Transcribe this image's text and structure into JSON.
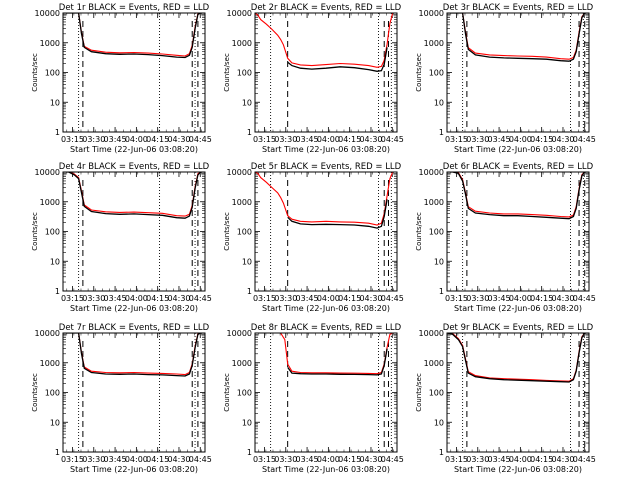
{
  "figure": {
    "ylabel": "Counts/sec",
    "xlabel": "Start Time (22-Jun-06 03:08:20)",
    "x_tick_labels": [
      "03:15",
      "03:30",
      "03:45",
      "04:00",
      "04:15",
      "04:30",
      "04:45"
    ],
    "y_tick_labels": [
      "1",
      "10",
      "100",
      "1000",
      "10000"
    ],
    "colors": {
      "events": "#000000",
      "lld": "#ff0000",
      "axes": "#000000",
      "background": "#ffffff"
    }
  },
  "chart_data": [
    {
      "type": "line",
      "title": "Det 1r BLACK = Events, RED = LLD",
      "xlabel": "Start Time (22-Jun-06 03:08:20)",
      "ylabel": "Counts/sec",
      "x_unit": "minutes after 03:08:20",
      "y_scale": "log",
      "xlim": [
        0,
        100
      ],
      "ylim": [
        1,
        10000
      ],
      "dotted_markers": [
        11,
        68,
        93
      ],
      "dashed_markers": [
        14,
        91,
        95
      ],
      "series": [
        {
          "color": "#000000",
          "x": [
            0,
            8,
            11,
            13,
            15,
            20,
            30,
            40,
            50,
            60,
            70,
            80,
            86,
            89,
            91,
            93,
            95,
            97,
            100
          ],
          "y": [
            12000,
            12000,
            10000,
            2000,
            700,
            500,
            430,
            410,
            420,
            400,
            370,
            330,
            320,
            380,
            700,
            3000,
            9000,
            12000,
            12000
          ]
        },
        {
          "color": "#ff0000",
          "x": [
            0,
            8,
            11,
            13,
            15,
            20,
            30,
            40,
            50,
            60,
            70,
            80,
            86,
            89,
            91,
            93,
            95,
            97,
            100
          ],
          "y": [
            12000,
            12000,
            10500,
            2200,
            760,
            560,
            480,
            460,
            470,
            450,
            420,
            380,
            360,
            430,
            800,
            3400,
            9500,
            12000,
            12000
          ]
        }
      ]
    },
    {
      "type": "line",
      "title": "Det 2r BLACK = Events, RED = LLD",
      "xlabel": "Start Time (22-Jun-06 03:08:20)",
      "ylabel": "Counts/sec",
      "x_unit": "minutes after 03:08:20",
      "y_scale": "log",
      "xlim": [
        0,
        100
      ],
      "ylim": [
        1,
        10000
      ],
      "dotted_markers": [
        11,
        87,
        96
      ],
      "dashed_markers": [
        23,
        91,
        94
      ],
      "series": [
        {
          "color": "#000000",
          "x": [
            23,
            26,
            32,
            40,
            50,
            60,
            70,
            80,
            86,
            89,
            91,
            93
          ],
          "y": [
            220,
            170,
            140,
            130,
            140,
            155,
            145,
            125,
            110,
            115,
            190,
            700
          ]
        },
        {
          "color": "#ff0000",
          "x": [
            0,
            2,
            4,
            8,
            12,
            16,
            18,
            20,
            23,
            26,
            32,
            40,
            50,
            60,
            70,
            80,
            86,
            89,
            91,
            93,
            95,
            97,
            100
          ],
          "y": [
            12000,
            8500,
            6000,
            4200,
            2800,
            1800,
            1300,
            850,
            300,
            210,
            180,
            170,
            185,
            200,
            190,
            170,
            150,
            160,
            260,
            900,
            4500,
            12000,
            12000
          ]
        }
      ]
    },
    {
      "type": "line",
      "title": "Det 3r BLACK = Events, RED = LLD",
      "xlabel": "Start Time (22-Jun-06 03:08:20)",
      "ylabel": "Counts/sec",
      "x_unit": "minutes after 03:08:20",
      "y_scale": "log",
      "xlim": [
        0,
        100
      ],
      "ylim": [
        1,
        10000
      ],
      "dotted_markers": [
        11,
        87,
        96
      ],
      "dashed_markers": [
        14,
        93,
        97
      ],
      "series": [
        {
          "color": "#000000",
          "x": [
            0,
            8,
            11,
            13,
            15,
            20,
            30,
            40,
            50,
            60,
            70,
            80,
            86,
            89,
            91,
            93,
            95,
            97,
            100
          ],
          "y": [
            12000,
            12000,
            10000,
            2000,
            600,
            390,
            330,
            310,
            300,
            290,
            280,
            250,
            240,
            280,
            500,
            2000,
            7000,
            12000,
            12000
          ]
        },
        {
          "color": "#ff0000",
          "x": [
            0,
            8,
            11,
            13,
            15,
            20,
            30,
            40,
            50,
            60,
            70,
            80,
            86,
            89,
            91,
            93,
            95,
            97,
            100
          ],
          "y": [
            12000,
            12000,
            10500,
            2300,
            680,
            450,
            390,
            370,
            360,
            350,
            330,
            290,
            280,
            320,
            560,
            2300,
            7500,
            12000,
            12000
          ]
        }
      ]
    },
    {
      "type": "line",
      "title": "Det 4r BLACK = Events, RED = LLD",
      "xlabel": "Start Time (22-Jun-06 03:08:20)",
      "ylabel": "Counts/sec",
      "x_unit": "minutes after 03:08:20",
      "y_scale": "log",
      "xlim": [
        0,
        100
      ],
      "ylim": [
        1,
        10000
      ],
      "dotted_markers": [
        11,
        68,
        93
      ],
      "dashed_markers": [
        14,
        91,
        95
      ],
      "series": [
        {
          "color": "#000000",
          "x": [
            0,
            4,
            8,
            11,
            13,
            15,
            20,
            30,
            40,
            50,
            60,
            70,
            80,
            86,
            89,
            91,
            93,
            95,
            97,
            100
          ],
          "y": [
            12000,
            10000,
            8000,
            6000,
            2000,
            700,
            470,
            400,
            380,
            390,
            370,
            350,
            290,
            280,
            330,
            650,
            2800,
            8000,
            12000,
            12000
          ]
        },
        {
          "color": "#ff0000",
          "x": [
            0,
            4,
            8,
            11,
            13,
            15,
            20,
            30,
            40,
            50,
            60,
            70,
            80,
            86,
            89,
            91,
            93,
            95,
            97,
            100
          ],
          "y": [
            12000,
            10500,
            8500,
            6500,
            2300,
            780,
            530,
            460,
            440,
            450,
            430,
            410,
            340,
            330,
            380,
            740,
            3200,
            8800,
            12000,
            12000
          ]
        }
      ]
    },
    {
      "type": "line",
      "title": "Det 5r BLACK = Events, RED = LLD",
      "xlabel": "Start Time (22-Jun-06 03:08:20)",
      "ylabel": "Counts/sec",
      "x_unit": "minutes after 03:08:20",
      "y_scale": "log",
      "xlim": [
        0,
        100
      ],
      "ylim": [
        1,
        10000
      ],
      "dotted_markers": [
        11,
        87,
        96
      ],
      "dashed_markers": [
        23,
        91,
        94
      ],
      "series": [
        {
          "color": "#000000",
          "x": [
            23,
            26,
            32,
            40,
            50,
            60,
            70,
            80,
            86,
            89,
            91,
            93
          ],
          "y": [
            300,
            220,
            180,
            170,
            175,
            170,
            165,
            150,
            130,
            150,
            320,
            1200
          ]
        },
        {
          "color": "#ff0000",
          "x": [
            0,
            2,
            4,
            8,
            12,
            16,
            18,
            20,
            23,
            26,
            32,
            40,
            50,
            60,
            70,
            80,
            86,
            89,
            91,
            93,
            95,
            97,
            100
          ],
          "y": [
            12000,
            9000,
            6500,
            4500,
            3000,
            2000,
            1400,
            900,
            340,
            260,
            220,
            210,
            220,
            210,
            205,
            190,
            165,
            190,
            400,
            1600,
            6000,
            12000,
            12000
          ]
        }
      ]
    },
    {
      "type": "line",
      "title": "Det 6r BLACK = Events, RED = LLD",
      "xlabel": "Start Time (22-Jun-06 03:08:20)",
      "ylabel": "Counts/sec",
      "x_unit": "minutes after 03:08:20",
      "y_scale": "log",
      "xlim": [
        0,
        100
      ],
      "ylim": [
        1,
        10000
      ],
      "dotted_markers": [
        11,
        87,
        96
      ],
      "dashed_markers": [
        14,
        93,
        97
      ],
      "series": [
        {
          "color": "#000000",
          "x": [
            0,
            4,
            8,
            11,
            13,
            15,
            20,
            30,
            40,
            50,
            60,
            70,
            80,
            86,
            89,
            91,
            93,
            95,
            97,
            100
          ],
          "y": [
            12000,
            12000,
            9000,
            5000,
            1800,
            600,
            420,
            370,
            340,
            340,
            320,
            300,
            280,
            270,
            320,
            600,
            2500,
            7500,
            12000,
            12000
          ]
        },
        {
          "color": "#ff0000",
          "x": [
            0,
            4,
            8,
            11,
            13,
            15,
            20,
            30,
            40,
            50,
            60,
            70,
            80,
            86,
            89,
            91,
            93,
            95,
            97,
            100
          ],
          "y": [
            12000,
            12000,
            9500,
            5500,
            2000,
            680,
            480,
            420,
            390,
            390,
            370,
            350,
            320,
            310,
            360,
            680,
            2800,
            8200,
            12000,
            12000
          ]
        }
      ]
    },
    {
      "type": "line",
      "title": "Det 7r BLACK = Events, RED = LLD",
      "xlabel": "Start Time (22-Jun-06 03:08:20)",
      "ylabel": "Counts/sec",
      "x_unit": "minutes after 03:08:20",
      "y_scale": "log",
      "xlim": [
        0,
        100
      ],
      "ylim": [
        1,
        10000
      ],
      "dotted_markers": [
        11,
        68,
        93
      ],
      "dashed_markers": [
        14,
        91,
        95
      ],
      "series": [
        {
          "color": "#000000",
          "x": [
            0,
            8,
            11,
            13,
            15,
            20,
            30,
            40,
            50,
            60,
            70,
            80,
            86,
            89,
            91,
            93,
            95,
            97,
            100
          ],
          "y": [
            12000,
            12000,
            10000,
            2000,
            650,
            470,
            420,
            410,
            420,
            400,
            390,
            370,
            360,
            420,
            800,
            3200,
            9000,
            12000,
            12000
          ]
        },
        {
          "color": "#ff0000",
          "x": [
            0,
            8,
            11,
            13,
            15,
            20,
            30,
            40,
            50,
            60,
            70,
            80,
            86,
            89,
            91,
            93,
            95,
            97,
            100
          ],
          "y": [
            12000,
            12000,
            10500,
            2200,
            720,
            520,
            470,
            460,
            470,
            450,
            440,
            420,
            400,
            470,
            900,
            3600,
            9500,
            12000,
            12000
          ]
        }
      ]
    },
    {
      "type": "line",
      "title": "Det 8r BLACK = Events, RED = LLD",
      "xlabel": "Start Time (22-Jun-06 03:08:20)",
      "ylabel": "Counts/sec",
      "x_unit": "minutes after 03:08:20",
      "y_scale": "log",
      "xlim": [
        0,
        100
      ],
      "ylim": [
        1,
        10000
      ],
      "dotted_markers": [
        11,
        87,
        96
      ],
      "dashed_markers": [
        23,
        91,
        94
      ],
      "series": [
        {
          "color": "#000000",
          "x": [
            23,
            26,
            32,
            40,
            50,
            60,
            70,
            80,
            86,
            89,
            91,
            93
          ],
          "y": [
            700,
            450,
            430,
            420,
            420,
            410,
            405,
            400,
            390,
            420,
            800,
            3000
          ]
        },
        {
          "color": "#ff0000",
          "x": [
            0,
            8,
            13,
            18,
            21,
            23,
            26,
            32,
            40,
            50,
            60,
            70,
            80,
            86,
            89,
            91,
            93,
            95,
            97,
            100
          ],
          "y": [
            12000,
            12000,
            12000,
            11000,
            6000,
            900,
            520,
            470,
            460,
            460,
            450,
            445,
            440,
            430,
            470,
            900,
            3300,
            9000,
            12000,
            12000
          ]
        }
      ]
    },
    {
      "type": "line",
      "title": "Det 9r BLACK = Events, RED = LLD",
      "xlabel": "Start Time (22-Jun-06 03:08:20)",
      "ylabel": "Counts/sec",
      "x_unit": "minutes after 03:08:20",
      "y_scale": "log",
      "xlim": [
        0,
        100
      ],
      "ylim": [
        1,
        10000
      ],
      "dotted_markers": [
        11,
        87,
        96
      ],
      "dashed_markers": [
        14,
        93,
        97
      ],
      "series": [
        {
          "color": "#000000",
          "x": [
            0,
            4,
            8,
            11,
            13,
            15,
            20,
            30,
            40,
            50,
            60,
            70,
            80,
            86,
            89,
            91,
            93,
            95,
            97,
            100
          ],
          "y": [
            12000,
            9000,
            6000,
            3500,
            1200,
            450,
            340,
            290,
            270,
            260,
            250,
            240,
            230,
            225,
            270,
            520,
            2200,
            7000,
            12000,
            12000
          ]
        },
        {
          "color": "#ff0000",
          "x": [
            0,
            4,
            8,
            11,
            13,
            15,
            20,
            30,
            40,
            50,
            60,
            70,
            80,
            86,
            89,
            91,
            93,
            95,
            97,
            100
          ],
          "y": [
            12000,
            9500,
            6500,
            3800,
            1350,
            500,
            370,
            310,
            290,
            280,
            270,
            255,
            245,
            240,
            290,
            560,
            2400,
            7500,
            12000,
            12000
          ]
        }
      ]
    }
  ]
}
